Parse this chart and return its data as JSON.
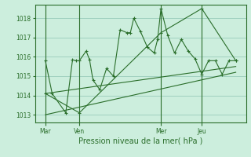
{
  "title": "Pression niveau de la mer( hPa )",
  "bg_color": "#cceedd",
  "grid_color": "#99ccbb",
  "line_color": "#2a6e2a",
  "yticks": [
    1013,
    1014,
    1015,
    1016,
    1017,
    1018
  ],
  "ylim": [
    1012.6,
    1018.7
  ],
  "xlim": [
    -0.5,
    30.5
  ],
  "day_labels": [
    "Mar",
    "Ven",
    "Mer",
    "Jeu"
  ],
  "day_positions": [
    1,
    6,
    18,
    24
  ],
  "series1_x": [
    1,
    2,
    4,
    5,
    5.5,
    6,
    7,
    7.5,
    8,
    9,
    10,
    11,
    12,
    13,
    13.5,
    14,
    15,
    16,
    17,
    17.5,
    18,
    19,
    20,
    21,
    22,
    23,
    24,
    25,
    26,
    27,
    28,
    29
  ],
  "series1_y": [
    1015.8,
    1014.1,
    1013.1,
    1015.85,
    1015.8,
    1015.8,
    1016.3,
    1015.85,
    1014.8,
    1014.3,
    1015.4,
    1015.0,
    1017.4,
    1017.25,
    1017.25,
    1018.0,
    1017.3,
    1016.5,
    1016.2,
    1016.9,
    1018.5,
    1017.1,
    1016.2,
    1016.9,
    1016.3,
    1015.9,
    1015.1,
    1015.8,
    1015.8,
    1015.1,
    1015.8,
    1015.8
  ],
  "series2_x": [
    1,
    6,
    18,
    24,
    29
  ],
  "series2_y": [
    1014.1,
    1013.1,
    1017.25,
    1018.5,
    1015.8
  ],
  "series3_x": [
    1,
    29
  ],
  "series3_y": [
    1014.1,
    1015.5
  ],
  "series4_x": [
    1,
    29
  ],
  "series4_y": [
    1013.0,
    1015.2
  ]
}
